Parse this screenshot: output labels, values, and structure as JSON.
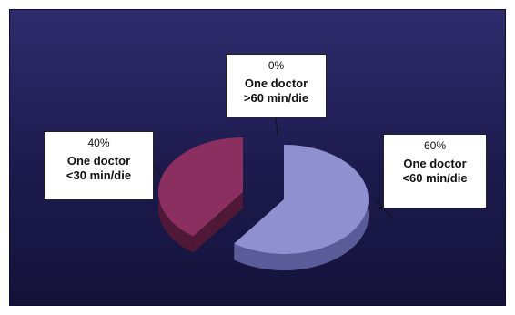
{
  "chart_data": {
    "type": "pie",
    "slices": [
      {
        "percent_label": "60%",
        "label_line1": "One doctor",
        "label_line2": "<60 min/die",
        "value": 60,
        "color": "#8e90cf",
        "side_color": "#5a5c9a"
      },
      {
        "percent_label": "40%",
        "label_line1": "One doctor",
        "label_line2": "<30 min/die",
        "value": 40,
        "color": "#8a2f5f",
        "side_color": "#4f1836"
      },
      {
        "percent_label": "0%",
        "label_line1": "One doctor",
        "label_line2": ">60 min/die",
        "value": 0,
        "color": "#4a4a8a",
        "side_color": "#2a2a5a"
      }
    ],
    "background_color": "#221f5a"
  }
}
